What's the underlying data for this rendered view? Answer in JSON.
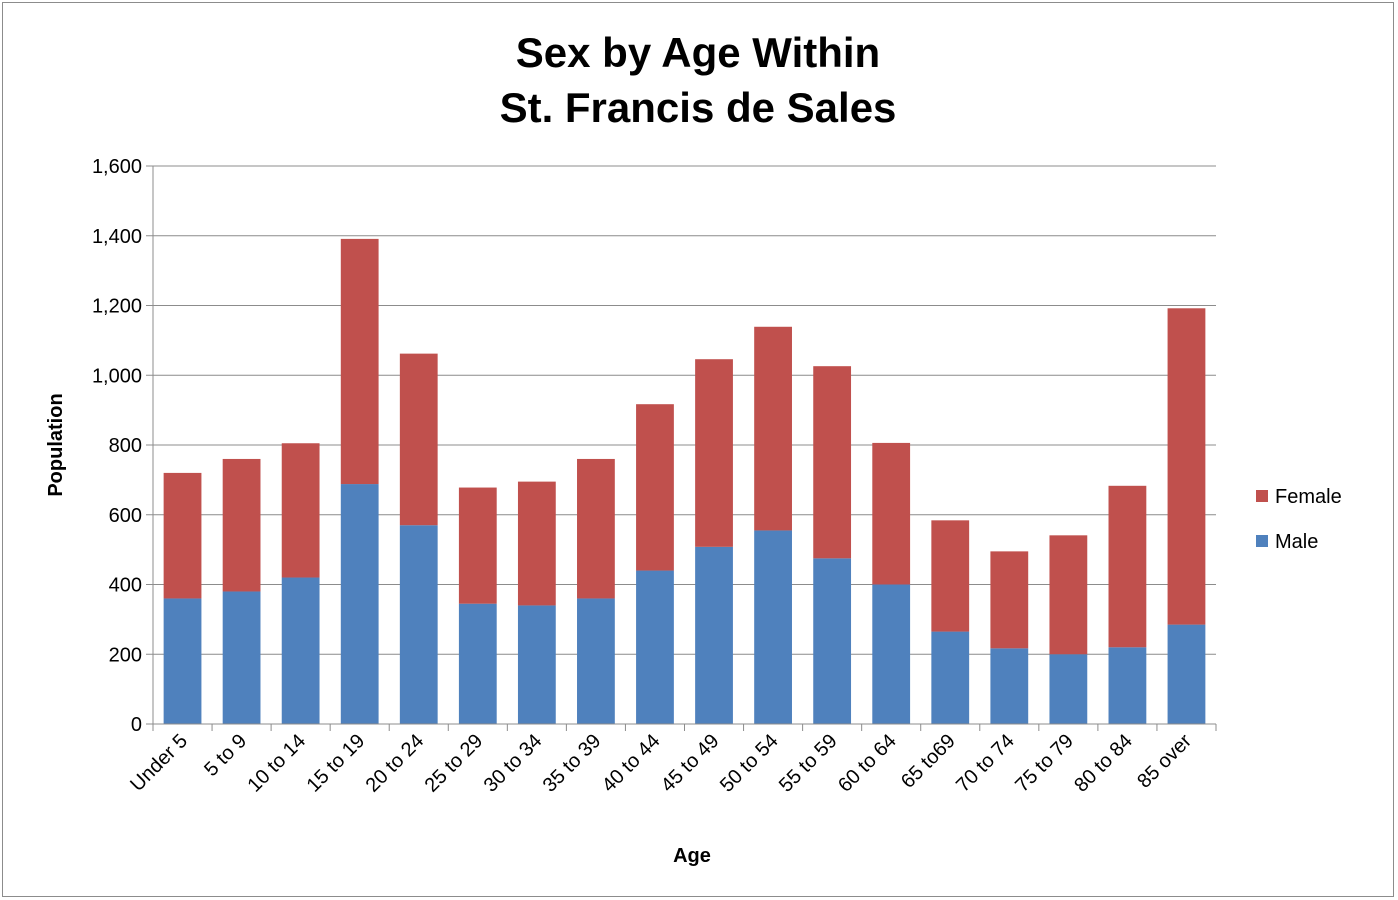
{
  "chart_data": {
    "type": "bar",
    "stacked": true,
    "title_lines": [
      "Sex by Age Within",
      "St. Francis de Sales"
    ],
    "xlabel": "Age",
    "ylabel": "Population",
    "ylim": [
      0,
      1600
    ],
    "yticks": [
      0,
      200,
      400,
      600,
      800,
      1000,
      1200,
      1400,
      1600
    ],
    "ytick_labels": [
      "0",
      "200",
      "400",
      "600",
      "800",
      "1,000",
      "1,200",
      "1,400",
      "1,600"
    ],
    "grid": true,
    "legend_position": "right",
    "categories": [
      "Under 5",
      "5 to 9",
      "10 to 14",
      "15 to 19",
      "20 to 24",
      "25 to 29",
      "30 to 34",
      "35 to 39",
      "40 to 44",
      "45 to 49",
      "50 to 54",
      "55 to 59",
      "60 to 64",
      "65 to69",
      "70 to 74",
      "75 to 79",
      "80 to 84",
      "85 over"
    ],
    "series": [
      {
        "name": "Male",
        "color": "#4f81bd",
        "values": [
          360,
          380,
          420,
          688,
          570,
          345,
          340,
          360,
          440,
          508,
          555,
          475,
          400,
          265,
          217,
          200,
          220,
          285
        ]
      },
      {
        "name": "Female",
        "color": "#c0504d",
        "values": [
          360,
          380,
          385,
          703,
          492,
          333,
          355,
          400,
          477,
          538,
          584,
          551,
          406,
          319,
          278,
          341,
          463,
          907
        ]
      }
    ],
    "legend_order": [
      "Female",
      "Male"
    ]
  }
}
